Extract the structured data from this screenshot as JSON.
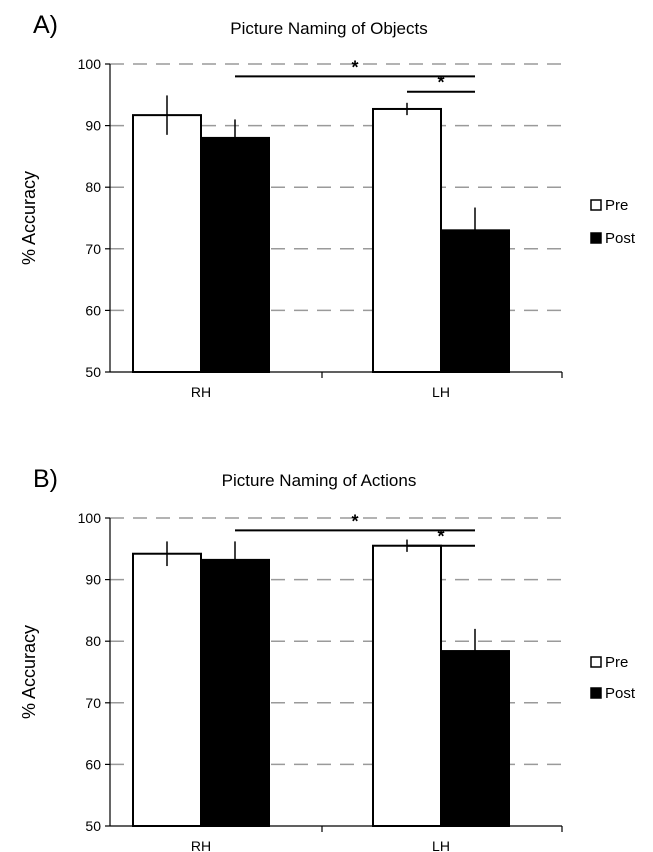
{
  "chart_data": [
    {
      "type": "bar",
      "panel_label": "A)",
      "title": "Picture Naming of Objects",
      "ylabel": "% Accuracy",
      "xlabel": "",
      "ylim": [
        50,
        100
      ],
      "yticks": [
        50,
        60,
        70,
        80,
        90,
        100
      ],
      "grid": "horizontal dashed",
      "legend": "right",
      "categories": [
        "RH",
        "LH"
      ],
      "series": [
        {
          "name": "Pre",
          "color": "#ffffff",
          "values": [
            91.7,
            92.7
          ],
          "errors": [
            3.2,
            1.0
          ]
        },
        {
          "name": "Post",
          "color": "#000000",
          "values": [
            88.0,
            73.0
          ],
          "errors": [
            3.0,
            3.7
          ]
        }
      ],
      "significance": [
        {
          "label": "*",
          "from": "RH Post",
          "to": "LH Post"
        },
        {
          "label": "*",
          "from": "LH Pre",
          "to": "LH Post"
        }
      ]
    },
    {
      "type": "bar",
      "panel_label": "B)",
      "title": "Picture Naming of Actions",
      "ylabel": "% Accuracy",
      "xlabel": "",
      "ylim": [
        50,
        100
      ],
      "yticks": [
        50,
        60,
        70,
        80,
        90,
        100
      ],
      "grid": "horizontal dashed",
      "legend": "right",
      "categories": [
        "RH",
        "LH"
      ],
      "series": [
        {
          "name": "Pre",
          "color": "#ffffff",
          "values": [
            94.2,
            95.5
          ],
          "errors": [
            2.0,
            1.0
          ]
        },
        {
          "name": "Post",
          "color": "#000000",
          "values": [
            93.2,
            78.4
          ],
          "errors": [
            3.0,
            3.6
          ]
        }
      ],
      "significance": [
        {
          "label": "*",
          "from": "RH Post",
          "to": "LH Post"
        },
        {
          "label": "*",
          "from": "LH Pre",
          "to": "LH Post"
        }
      ]
    }
  ]
}
